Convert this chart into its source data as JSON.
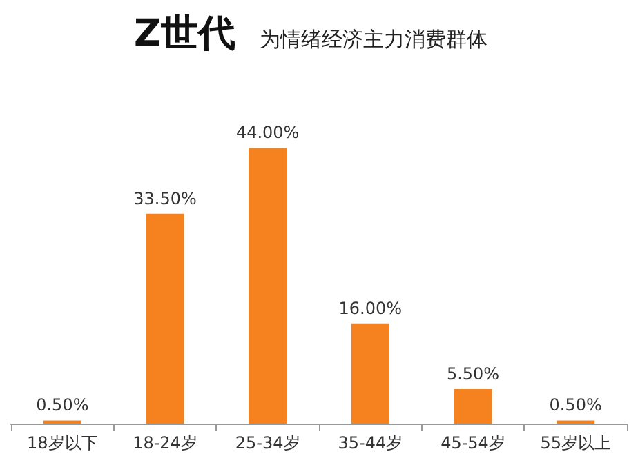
{
  "chart_data": {
    "type": "bar",
    "title": "Z世代",
    "subtitle": "为情绪经济主力消费群体",
    "categories": [
      "18岁以下",
      "18-24岁",
      "25-34岁",
      "35-44岁",
      "45-54岁",
      "55岁以上"
    ],
    "values": [
      0.5,
      33.5,
      44,
      16,
      5.5,
      0.5
    ],
    "value_labels": [
      "0.50%",
      "33.50%",
      "44.00%",
      "16.00%",
      "5.50%",
      "0.50%"
    ],
    "color": "#f5821f"
  }
}
